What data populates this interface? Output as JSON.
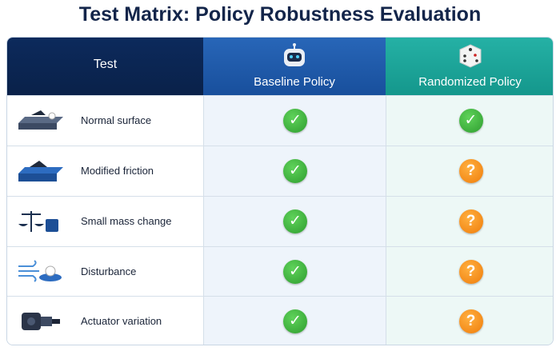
{
  "title": "Test Matrix: Policy Robustness Evaluation",
  "table": {
    "header": [
      "Test",
      "Baseline Policy",
      "Randomized Policy"
    ],
    "rows": [
      [
        "Normal surface",
        "✓",
        "✓"
      ],
      [
        "Modified friction",
        "✓",
        "?"
      ],
      [
        "Small mass change",
        "✓",
        "?"
      ],
      [
        "Disturbance",
        "✓",
        "?"
      ],
      [
        "Actuator variation",
        "✓",
        "?"
      ]
    ]
  }
}
